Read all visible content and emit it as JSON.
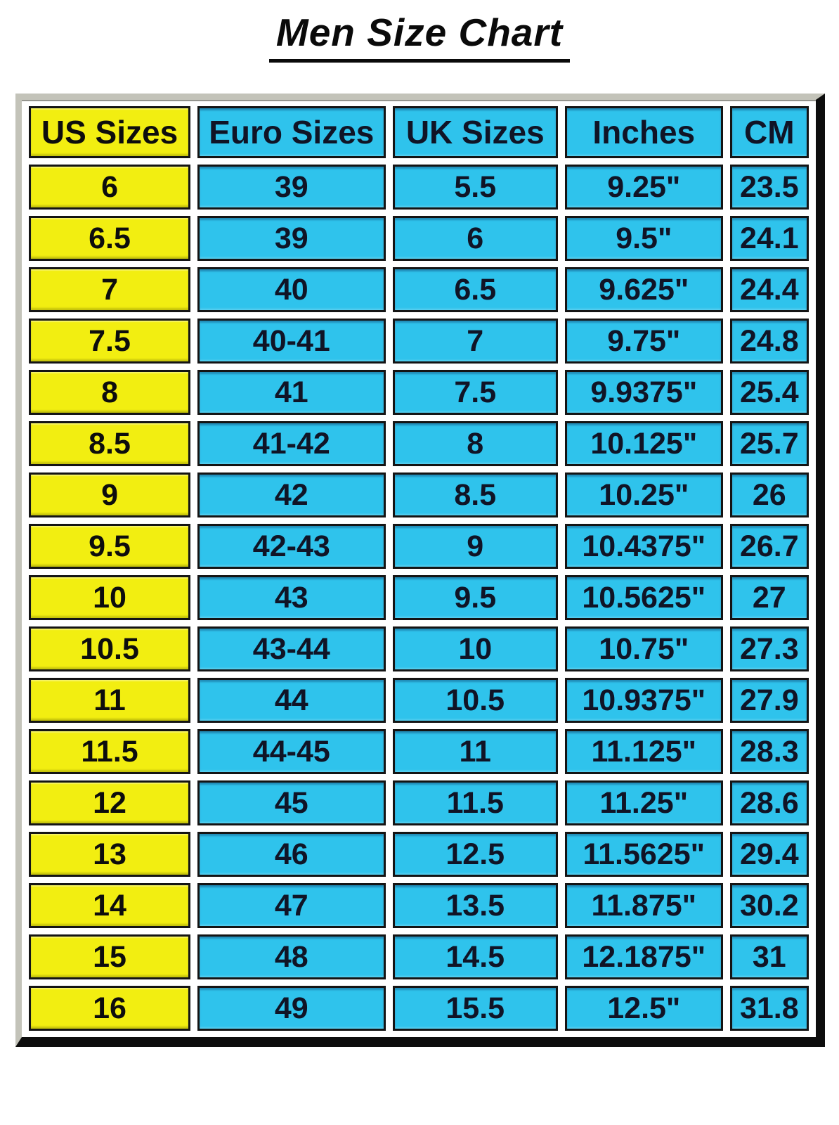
{
  "page": {
    "title": "Men Size Chart"
  },
  "chart_data": {
    "type": "table",
    "title": "Men Size Chart",
    "columns": [
      "US Sizes",
      "Euro Sizes",
      "UK Sizes",
      "Inches",
      "CM"
    ],
    "rows": [
      [
        "6",
        "39",
        "5.5",
        "9.25\"",
        "23.5"
      ],
      [
        "6.5",
        "39",
        "6",
        "9.5\"",
        "24.1"
      ],
      [
        "7",
        "40",
        "6.5",
        "9.625\"",
        "24.4"
      ],
      [
        "7.5",
        "40-41",
        "7",
        "9.75\"",
        "24.8"
      ],
      [
        "8",
        "41",
        "7.5",
        "9.9375\"",
        "25.4"
      ],
      [
        "8.5",
        "41-42",
        "8",
        "10.125\"",
        "25.7"
      ],
      [
        "9",
        "42",
        "8.5",
        "10.25\"",
        "26"
      ],
      [
        "9.5",
        "42-43",
        "9",
        "10.4375\"",
        "26.7"
      ],
      [
        "10",
        "43",
        "9.5",
        "10.5625\"",
        "27"
      ],
      [
        "10.5",
        "43-44",
        "10",
        "10.75\"",
        "27.3"
      ],
      [
        "11",
        "44",
        "10.5",
        "10.9375\"",
        "27.9"
      ],
      [
        "11.5",
        "44-45",
        "11",
        "11.125\"",
        "28.3"
      ],
      [
        "12",
        "45",
        "11.5",
        "11.25\"",
        "28.6"
      ],
      [
        "13",
        "46",
        "12.5",
        "11.5625\"",
        "29.4"
      ],
      [
        "14",
        "47",
        "13.5",
        "11.875\"",
        "30.2"
      ],
      [
        "15",
        "48",
        "14.5",
        "12.1875\"",
        "31"
      ],
      [
        "16",
        "49",
        "15.5",
        "12.5\"",
        "31.8"
      ]
    ],
    "layout": {
      "legend": "none",
      "grid": "cell-borders",
      "first_column_highlight": "US Sizes"
    }
  },
  "colors": {
    "us_column_bg": "#f2ee11",
    "other_columns_bg": "#2fc3ec",
    "cell_border": "#141414",
    "frame_light": "#c3c3b9",
    "frame_dark": "#0d0d0d",
    "title_color": "#0a0a0a"
  }
}
